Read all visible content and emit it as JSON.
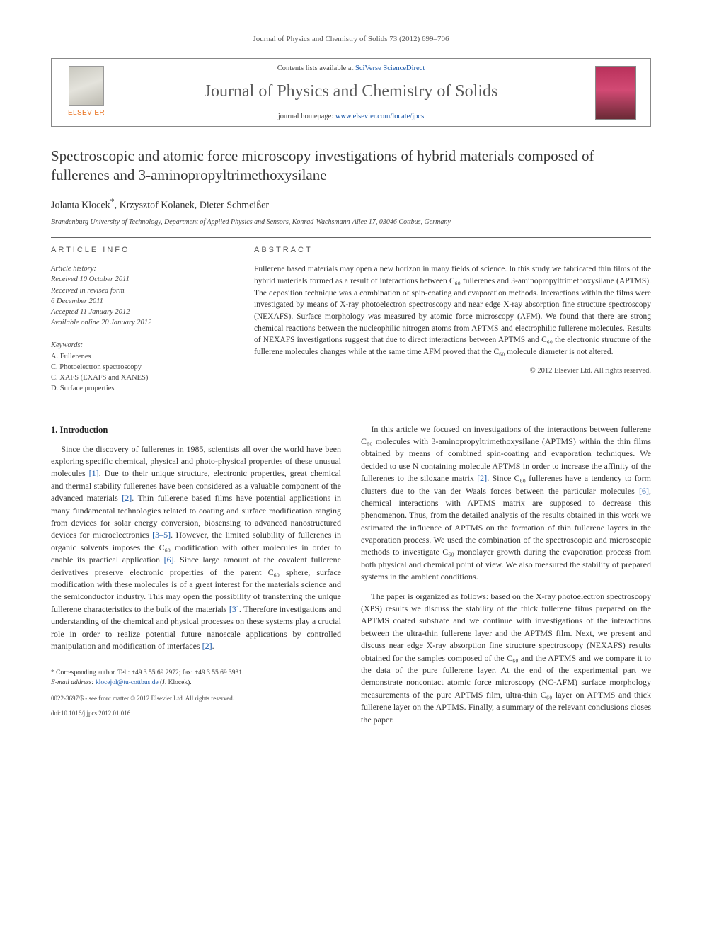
{
  "header": {
    "citation": "Journal of Physics and Chemistry of Solids 73 (2012) 699–706"
  },
  "masthead": {
    "publisher_word": "ELSEVIER",
    "contents_prefix": "Contents lists available at ",
    "contents_link": "SciVerse ScienceDirect",
    "journal_name": "Journal of Physics and Chemistry of Solids",
    "homepage_prefix": "journal homepage: ",
    "homepage_link": "www.elsevier.com/locate/jpcs"
  },
  "article": {
    "title": "Spectroscopic and atomic force microscopy investigations of hybrid materials composed of fullerenes and 3-aminopropyltrimethoxysilane",
    "authors": "Jolanta Klocek",
    "corr_marker": "*",
    "authors_rest": ", Krzysztof Kolanek, Dieter Schmeißer",
    "affiliation": "Brandenburg University of Technology, Department of Applied Physics and Sensors, Konrad-Wachsmann-Allee 17, 03046 Cottbus, Germany"
  },
  "info": {
    "label": "article info",
    "history_heading": "Article history:",
    "history": [
      "Received 10 October 2011",
      "Received in revised form",
      "6 December 2011",
      "Accepted 11 January 2012",
      "Available online 20 January 2012"
    ],
    "keywords_heading": "Keywords:",
    "keywords": [
      "A. Fullerenes",
      "C. Photoelectron spectroscopy",
      "C. XAFS (EXAFS and XANES)",
      "D. Surface properties"
    ]
  },
  "abstract": {
    "label": "abstract",
    "text": "Fullerene based materials may open a new horizon in many fields of science. In this study we fabricated thin films of the hybrid materials formed as a result of interactions between C₆₀ fullerenes and 3-aminopropyltrimethoxysilane (APTMS). The deposition technique was a combination of spin-coating and evaporation methods. Interactions within the films were investigated by means of X-ray photoelectron spectroscopy and near edge X-ray absorption fine structure spectroscopy (NEXAFS). Surface morphology was measured by atomic force microscopy (AFM). We found that there are strong chemical reactions between the nucleophilic nitrogen atoms from APTMS and electrophilic fullerene molecules. Results of NEXAFS investigations suggest that due to direct interactions between APTMS and C₆₀ the electronic structure of the fullerene molecules changes while at the same time AFM proved that the C₆₀ molecule diameter is not altered.",
    "copyright": "© 2012 Elsevier Ltd. All rights reserved."
  },
  "body": {
    "section_heading": "1. Introduction",
    "p1a": "Since the discovery of fullerenes in 1985, scientists all over the world have been exploring specific chemical, physical and photo-physical properties of these unusual molecules ",
    "r1": "[1]",
    "p1b": ". Due to their unique structure, electronic properties, great chemical and thermal stability fullerenes have been considered as a valuable component of the advanced materials ",
    "r2": "[2]",
    "p1c": ". Thin fullerene based films have potential applications in many fundamental technologies related to coating and surface modification ranging from devices for solar energy conversion, biosensing to advanced nanostructured devices for microelectronics ",
    "r3": "[3–5]",
    "p1d": ". However, the limited solubility of fullerenes in organic solvents imposes the C₆₀ modification with other molecules in order to enable its practical application ",
    "r4": "[6]",
    "p1e": ". Since large amount of the covalent fullerene derivatives preserve electronic properties of the parent C₆₀ sphere, surface modification with these molecules is of a great interest for the materials science and the semiconductor industry. This may open the possibility of transferring the unique fullerene characteristics to the bulk of the materials ",
    "r5": "[3]",
    "p1f": ". Therefore investigations and understanding of the chemical and physical processes on these systems play a crucial role in order to realize potential future nanoscale applications by controlled manipulation and modification of interfaces ",
    "r6": "[2]",
    "p1g": ".",
    "p2a": "In this article we focused on investigations of the interactions between fullerene C₆₀ molecules with 3-aminopropyltrimethoxysilane (APTMS) within the thin films obtained by means of combined spin-coating and evaporation techniques. We decided to use N containing molecule APTMS in order to increase the affinity of the fullerenes to the siloxane matrix ",
    "r7": "[2]",
    "p2b": ". Since C₆₀ fullerenes have a tendency to form clusters due to the van der Waals forces between the particular molecules ",
    "r8": "[6]",
    "p2c": ", chemical interactions with APTMS matrix are supposed to decrease this phenomenon. Thus, from the detailed analysis of the results obtained in this work we estimated the influence of APTMS on the formation of thin fullerene layers in the evaporation process. We used the combination of the spectroscopic and microscopic methods to investigate C₆₀ monolayer growth during the evaporation process from both physical and chemical point of view. We also measured the stability of prepared systems in the ambient conditions.",
    "p3": "The paper is organized as follows: based on the X-ray photoelectron spectroscopy (XPS) results we discuss the stability of the thick fullerene films prepared on the APTMS coated substrate and we continue with investigations of the interactions between the ultra-thin fullerene layer and the APTMS film. Next, we present and discuss near edge X-ray absorption fine structure spectroscopy (NEXAFS) results obtained for the samples composed of the C₆₀ and the APTMS and we compare it to the data of the pure fullerene layer. At the end of the experimental part we demonstrate noncontact atomic force microscopy (NC-AFM) surface morphology measurements of the pure APTMS film, ultra-thin C₆₀ layer on APTMS and thick fullerene layer on the APTMS. Finally, a summary of the relevant conclusions closes the paper."
  },
  "footnotes": {
    "corr": "* Corresponding author. Tel.: +49 3 55 69 2972; fax: +49 3 55 69 3931.",
    "email_label": "E-mail address: ",
    "email": "klocejol@tu-cottbus.de",
    "email_who": " (J. Klocek)."
  },
  "bottom": {
    "issn": "0022-3697/$ - see front matter © 2012 Elsevier Ltd. All rights reserved.",
    "doi": "doi:10.1016/j.jpcs.2012.01.016"
  },
  "colors": {
    "link": "#1856a7",
    "publisher_orange": "#e9711c",
    "rule": "#666666",
    "text": "#333333"
  }
}
